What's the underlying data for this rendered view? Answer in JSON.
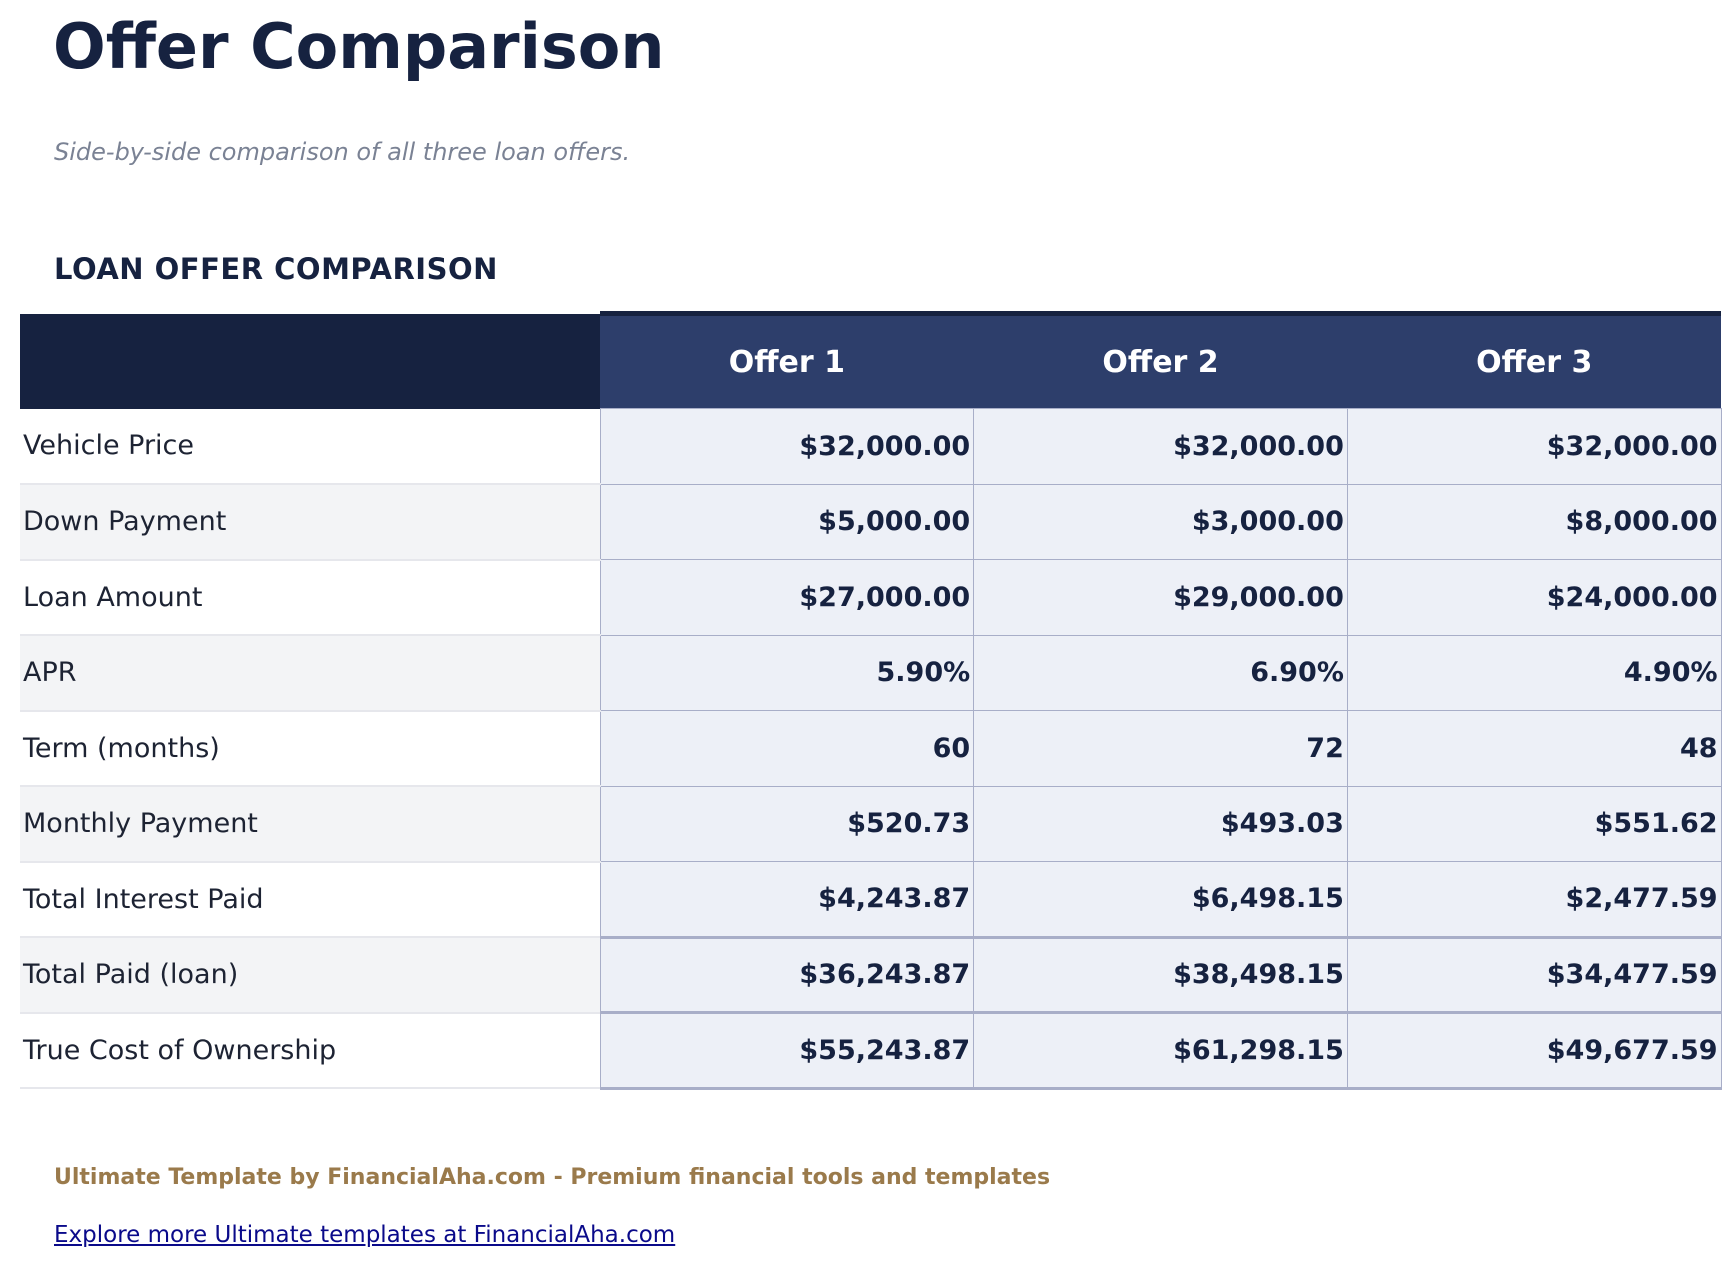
{
  "header": {
    "title": "Offer Comparison",
    "subtitle": "Side-by-side comparison of all three loan offers."
  },
  "section": {
    "title": "LOAN OFFER COMPARISON"
  },
  "table": {
    "columns": [
      "",
      "Offer 1",
      "Offer 2",
      "Offer 3"
    ],
    "rows": [
      {
        "label": "Vehicle Price",
        "values": [
          "$32,000.00",
          "$32,000.00",
          "$32,000.00"
        ]
      },
      {
        "label": "Down Payment",
        "values": [
          "$5,000.00",
          "$3,000.00",
          "$8,000.00"
        ]
      },
      {
        "label": "Loan Amount",
        "values": [
          "$27,000.00",
          "$29,000.00",
          "$24,000.00"
        ]
      },
      {
        "label": "APR",
        "values": [
          "5.90%",
          "6.90%",
          "4.90%"
        ]
      },
      {
        "label": "Term (months)",
        "values": [
          "60",
          "72",
          "48"
        ]
      },
      {
        "label": "Monthly Payment",
        "values": [
          "$520.73",
          "$493.03",
          "$551.62"
        ]
      },
      {
        "label": "Total Interest Paid",
        "values": [
          "$4,243.87",
          "$6,498.15",
          "$2,477.59"
        ]
      },
      {
        "label": "Total Paid (loan)",
        "values": [
          "$36,243.87",
          "$38,498.15",
          "$34,477.59"
        ]
      },
      {
        "label": "True Cost of Ownership",
        "values": [
          "$55,243.87",
          "$61,298.15",
          "$49,677.59"
        ]
      }
    ]
  },
  "footer": {
    "credit": "Ultimate Template by FinancialAha.com - Premium financial tools and templates",
    "link": "Explore more Ultimate templates at FinancialAha.com"
  },
  "colors": {
    "navy": "#162240",
    "header_offer": "#2d3e6b",
    "value_bg": "#edf0f7",
    "gold": "#9a7a4b",
    "link": "#0a0a8a"
  }
}
